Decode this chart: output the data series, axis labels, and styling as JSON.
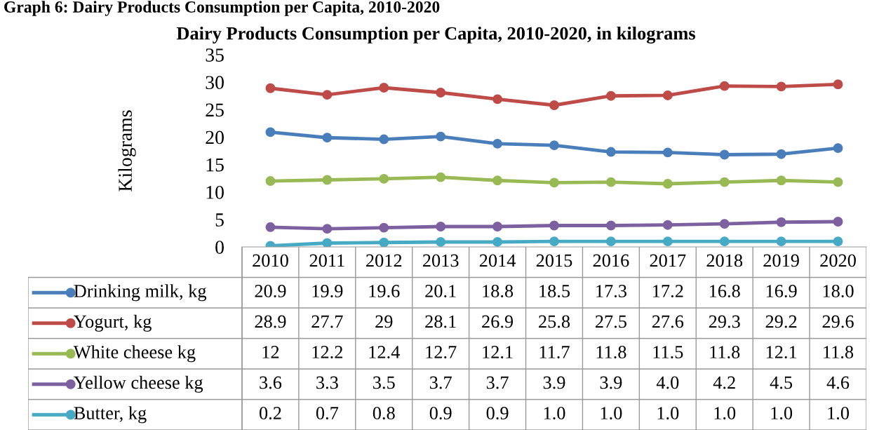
{
  "chart_data": {
    "type": "line",
    "title": "Dairy Products Consumption per Capita, 2010-2020, in kilograms",
    "ylabel": "Kilograms",
    "annotations": [
      "Graph 6: Dairy Products Consumption per Capita, 2010-2020"
    ],
    "categories": [
      "2010",
      "2011",
      "2012",
      "2013",
      "2014",
      "2015",
      "2016",
      "2017",
      "2018",
      "2019",
      "2020"
    ],
    "ylim": [
      0,
      35
    ],
    "yticks": [
      0,
      5,
      10,
      15,
      20,
      25,
      30,
      35
    ],
    "marker": "circle",
    "legend": "bottom",
    "series": [
      {
        "name": "Drinking milk, kg",
        "color": "#4a7ebb",
        "values": [
          20.9,
          19.9,
          19.6,
          20.1,
          18.8,
          18.5,
          17.3,
          17.2,
          16.8,
          16.9,
          18.0
        ],
        "value_labels": [
          "20.9",
          "19.9",
          "19.6",
          "20.1",
          "18.8",
          "18.5",
          "17.3",
          "17.2",
          "16.8",
          "16.9",
          "18.0"
        ]
      },
      {
        "name": "Yogurt, kg",
        "color": "#be4b48",
        "values": [
          28.9,
          27.7,
          29,
          28.1,
          26.9,
          25.8,
          27.5,
          27.6,
          29.3,
          29.2,
          29.6
        ],
        "value_labels": [
          "28.9",
          "27.7",
          "29",
          "28.1",
          "26.9",
          "25.8",
          "27.5",
          "27.6",
          "29.3",
          "29.2",
          "29.6"
        ]
      },
      {
        "name": "White cheese kg",
        "color": "#98b954",
        "values": [
          12,
          12.2,
          12.4,
          12.7,
          12.1,
          11.7,
          11.8,
          11.5,
          11.8,
          12.1,
          11.8
        ],
        "value_labels": [
          "12",
          "12.2",
          "12.4",
          "12.7",
          "12.1",
          "11.7",
          "11.8",
          "11.5",
          "11.8",
          "12.1",
          "11.8"
        ]
      },
      {
        "name": "Yellow cheese kg",
        "color": "#7d60a0",
        "values": [
          3.6,
          3.3,
          3.5,
          3.7,
          3.7,
          3.9,
          3.9,
          4.0,
          4.2,
          4.5,
          4.6
        ],
        "value_labels": [
          "3.6",
          "3.3",
          "3.5",
          "3.7",
          "3.7",
          "3.9",
          "3.9",
          "4.0",
          "4.2",
          "4.5",
          "4.6"
        ]
      },
      {
        "name": "Butter, kg",
        "color": "#46aac5",
        "values": [
          0.2,
          0.7,
          0.8,
          0.9,
          0.9,
          1.0,
          1.0,
          1.0,
          1.0,
          1.0,
          1.0
        ],
        "value_labels": [
          "0.2",
          "0.7",
          "0.8",
          "0.9",
          "0.9",
          "1.0",
          "1.0",
          "1.0",
          "1.0",
          "1.0",
          "1.0"
        ]
      }
    ]
  }
}
